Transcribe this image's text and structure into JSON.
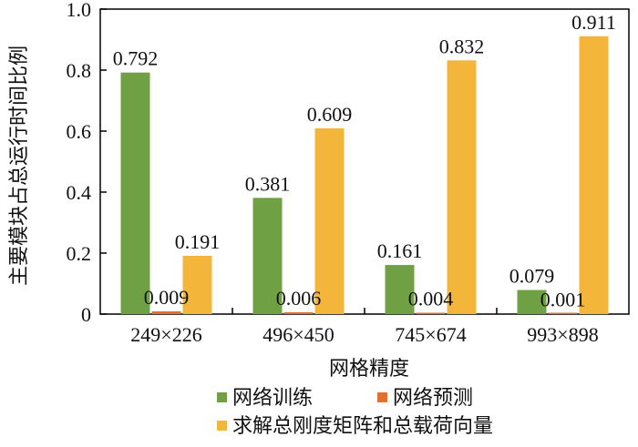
{
  "chart_data": {
    "type": "bar",
    "categories": [
      "249×226",
      "496×450",
      "745×674",
      "993×898"
    ],
    "series": [
      {
        "name": "网络训练",
        "color": "#70a044",
        "values": [
          0.792,
          0.381,
          0.161,
          0.079
        ]
      },
      {
        "name": "网络预测",
        "color": "#e2702e",
        "values": [
          0.009,
          0.006,
          0.004,
          0.001
        ]
      },
      {
        "name": "求解总刚度矩阵和总载荷向量",
        "color": "#f4b53b",
        "values": [
          0.191,
          0.609,
          0.832,
          0.911
        ]
      }
    ],
    "data_labels": [
      [
        "0.792",
        "0.381",
        "0.161",
        "0.079"
      ],
      [
        "0.009",
        "0.006",
        "0.004",
        "0.001"
      ],
      [
        "0.191",
        "0.609",
        "0.832",
        "0.911"
      ]
    ],
    "xlabel": "网格精度",
    "ylabel": "主要模块占总运行时间比例",
    "ylim": [
      0,
      1.0
    ],
    "yticks": [
      "0",
      "0.2",
      "0.4",
      "0.6",
      "0.8",
      "1.0"
    ],
    "grid": false,
    "legend_position": "bottom"
  }
}
